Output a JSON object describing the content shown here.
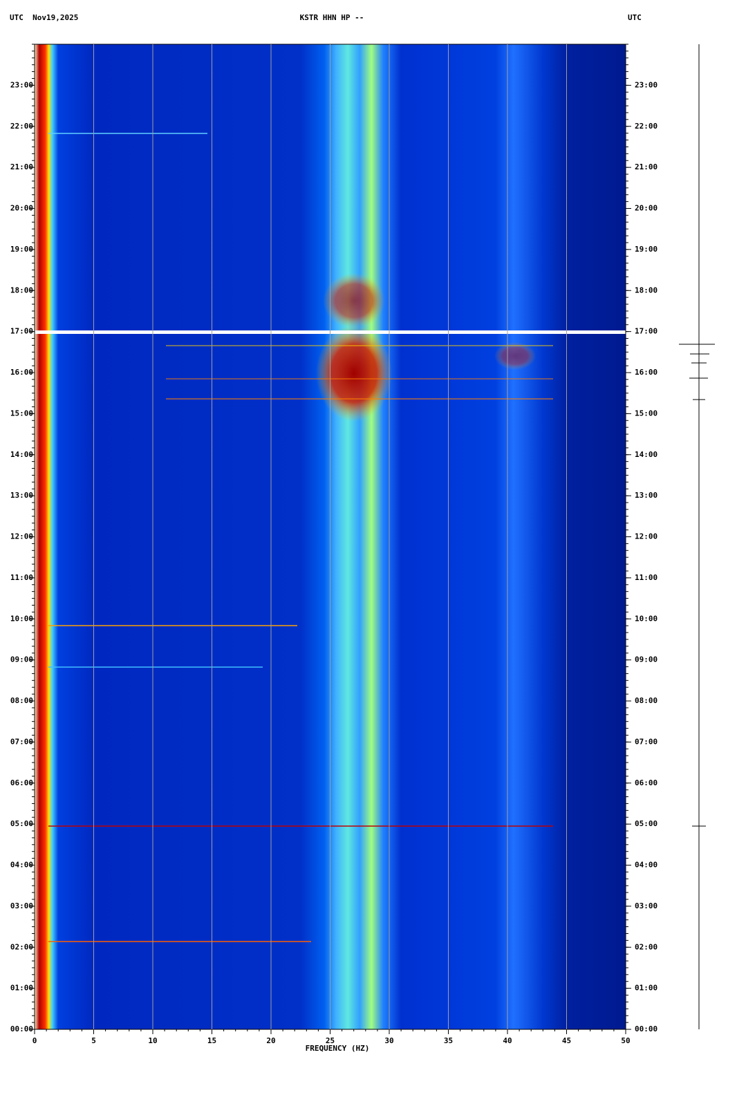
{
  "chart_data": {
    "type": "heatmap",
    "title": "KSTR HHN HP --",
    "top_left": "UTC  Nov19,2025",
    "top_right": "UTC",
    "xlabel": "FREQUENCY (HZ)",
    "xlim": [
      0,
      50
    ],
    "xticks": [
      0,
      5,
      10,
      15,
      20,
      25,
      30,
      35,
      40,
      45,
      50
    ],
    "ylim": [
      0,
      24
    ],
    "yticks": [
      {
        "value": 0,
        "label": "00:00"
      },
      {
        "value": 1,
        "label": "01:00"
      },
      {
        "value": 2,
        "label": "02:00"
      },
      {
        "value": 3,
        "label": "03:00"
      },
      {
        "value": 4,
        "label": "04:00"
      },
      {
        "value": 5,
        "label": "05:00"
      },
      {
        "value": 6,
        "label": "06:00"
      },
      {
        "value": 7,
        "label": "07:00"
      },
      {
        "value": 8,
        "label": "08:00"
      },
      {
        "value": 9,
        "label": "09:00"
      },
      {
        "value": 10,
        "label": "10:00"
      },
      {
        "value": 11,
        "label": "11:00"
      },
      {
        "value": 12,
        "label": "12:00"
      },
      {
        "value": 13,
        "label": "13:00"
      },
      {
        "value": 14,
        "label": "14:00"
      },
      {
        "value": 15,
        "label": "15:00"
      },
      {
        "value": 16,
        "label": "16:00"
      },
      {
        "value": 17,
        "label": "17:00"
      },
      {
        "value": 18,
        "label": "18:00"
      },
      {
        "value": 19,
        "label": "19:00"
      },
      {
        "value": 20,
        "label": "20:00"
      },
      {
        "value": 21,
        "label": "21:00"
      },
      {
        "value": 22,
        "label": "22:00"
      },
      {
        "value": 23,
        "label": "23:00"
      }
    ],
    "grid": true
  }
}
